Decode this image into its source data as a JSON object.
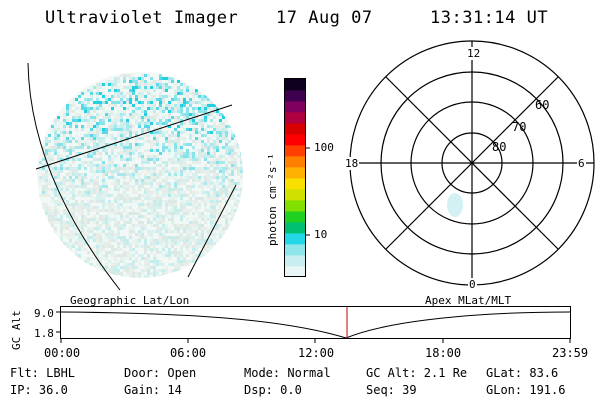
{
  "header": {
    "instrument": "Ultraviolet Imager",
    "date": "17 Aug 07",
    "time": "13:31:14 UT"
  },
  "colorbar": {
    "label": "photon cm⁻²s⁻¹",
    "ticks": [
      "100",
      "10"
    ],
    "colors": [
      "#eaf6f6",
      "#c8eef0",
      "#8fe6ea",
      "#22d8e6",
      "#00c070",
      "#20d020",
      "#80e000",
      "#d0e000",
      "#f8e000",
      "#ffb000",
      "#ff8000",
      "#ff4000",
      "#ff0000",
      "#d80000",
      "#b00040",
      "#800060",
      "#400050",
      "#100020"
    ]
  },
  "polar": {
    "lat_labels": [
      "80",
      "70",
      "60"
    ],
    "mlt_labels": {
      "top": "12",
      "bottom": "0",
      "left": "18",
      "right": "6"
    }
  },
  "timeline": {
    "left_label": "Geographic Lat/Lon",
    "right_label": "Apex MLat/MLT",
    "y_axis_label": "GC Alt",
    "y_ticks": [
      "9.0",
      "1.8"
    ],
    "x_ticks": [
      "00:00",
      "06:00",
      "12:00",
      "18:00",
      "23:59"
    ]
  },
  "status": [
    [
      "Flt: LBHL",
      "Door: Open",
      "Mode: Normal",
      "GC Alt: 2.1 Re",
      "GLat:  83.6"
    ],
    [
      "IP: 36.0",
      "Gain: 14",
      "Dsp:    0.0",
      "Seq: 39",
      "GLon: 191.6"
    ]
  ]
}
